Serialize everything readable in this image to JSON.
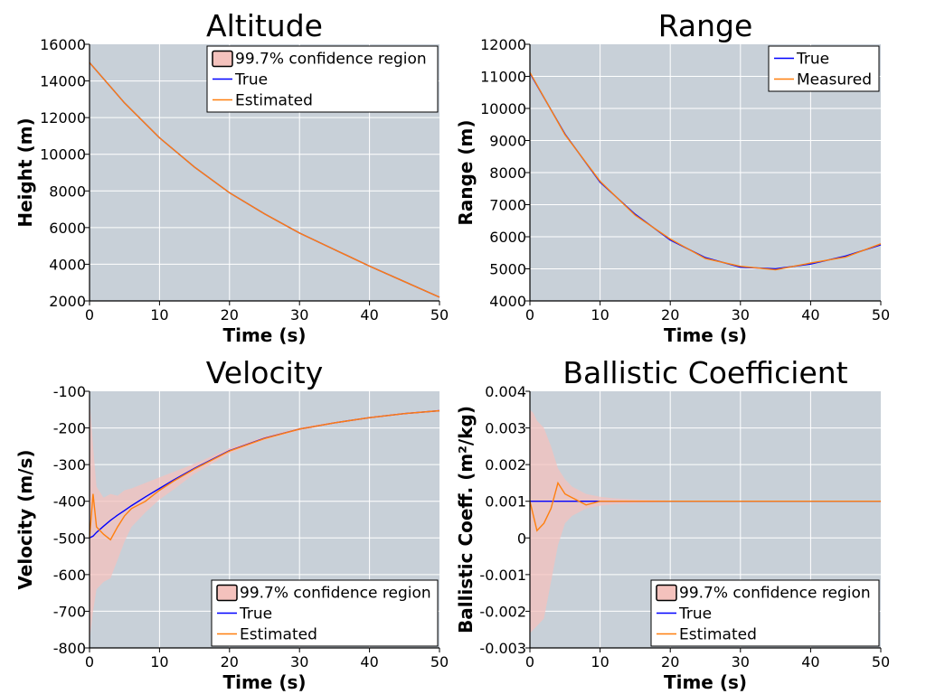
{
  "chart_data": [
    {
      "type": "line",
      "title": "Altitude",
      "xlabel": "Time (s)",
      "ylabel": "Height (m)",
      "xlim": [
        0,
        50
      ],
      "ylim": [
        2000,
        16000
      ],
      "xticks": [
        0,
        10,
        20,
        30,
        40,
        50
      ],
      "yticks": [
        2000,
        4000,
        6000,
        8000,
        10000,
        12000,
        14000,
        16000
      ],
      "xtick_labels": [
        "0",
        "10",
        "20",
        "30",
        "40",
        "50"
      ],
      "ytick_labels": [
        "2000",
        "4000",
        "6000",
        "8000",
        "10000",
        "12000",
        "14000",
        "16000"
      ],
      "grid": true,
      "legend_position": "top-right",
      "x": [
        0,
        5,
        10,
        15,
        20,
        25,
        30,
        35,
        40,
        45,
        50
      ],
      "series": [
        {
          "name": "True",
          "color": "#0000ff",
          "values": [
            15000,
            12800,
            10900,
            9300,
            7900,
            6750,
            5700,
            4800,
            3900,
            3050,
            2200
          ]
        },
        {
          "name": "Estimated",
          "color": "#ff7f0e",
          "values": [
            15000,
            12800,
            10900,
            9300,
            7900,
            6750,
            5700,
            4800,
            3900,
            3050,
            2200
          ]
        }
      ],
      "confidence_band": {
        "name": "99.7% confidence region",
        "color": "#f4c2bd",
        "upper": [
          15050,
          12850,
          10950,
          9350,
          7950,
          6800,
          5750,
          4850,
          3950,
          3100,
          2250
        ],
        "lower": [
          14950,
          12750,
          10850,
          9250,
          7850,
          6700,
          5650,
          4750,
          3850,
          3000,
          2150
        ]
      }
    },
    {
      "type": "line",
      "title": "Range",
      "xlabel": "Time (s)",
      "ylabel": "Range (m)",
      "xlim": [
        0,
        50
      ],
      "ylim": [
        4000,
        12000
      ],
      "xticks": [
        0,
        10,
        20,
        30,
        40,
        50
      ],
      "yticks": [
        4000,
        5000,
        6000,
        7000,
        8000,
        9000,
        10000,
        11000,
        12000
      ],
      "xtick_labels": [
        "0",
        "10",
        "20",
        "30",
        "40",
        "50"
      ],
      "ytick_labels": [
        "4000",
        "5000",
        "6000",
        "7000",
        "8000",
        "9000",
        "10000",
        "11000",
        "12000"
      ],
      "grid": true,
      "legend_position": "top-right",
      "x": [
        0,
        5,
        10,
        15,
        20,
        25,
        30,
        35,
        40,
        45,
        50
      ],
      "series": [
        {
          "name": "True",
          "color": "#0000ff",
          "values": [
            11100,
            9200,
            7700,
            6700,
            5900,
            5350,
            5050,
            5000,
            5150,
            5400,
            5750
          ]
        },
        {
          "name": "Measured",
          "color": "#ff7f0e",
          "values": [
            11120,
            9180,
            7730,
            6670,
            5930,
            5320,
            5080,
            4970,
            5180,
            5370,
            5780
          ]
        }
      ]
    },
    {
      "type": "line",
      "title": "Velocity",
      "xlabel": "Time (s)",
      "ylabel": "Velocity (m/s)",
      "xlim": [
        0,
        50
      ],
      "ylim": [
        -800,
        -100
      ],
      "xticks": [
        0,
        10,
        20,
        30,
        40,
        50
      ],
      "yticks": [
        -800,
        -700,
        -600,
        -500,
        -400,
        -300,
        -200,
        -100
      ],
      "xtick_labels": [
        "0",
        "10",
        "20",
        "30",
        "40",
        "50"
      ],
      "ytick_labels": [
        "-800",
        "-700",
        "-600",
        "-500",
        "-400",
        "-300",
        "-200",
        "-100"
      ],
      "grid": true,
      "legend_position": "bottom-right",
      "x": [
        0,
        0.5,
        1,
        2,
        3,
        4,
        5,
        6,
        8,
        10,
        12,
        15,
        20,
        25,
        30,
        35,
        40,
        45,
        50
      ],
      "series": [
        {
          "name": "True",
          "color": "#0000ff",
          "values": [
            -500,
            -495,
            -485,
            -468,
            -452,
            -438,
            -425,
            -412,
            -388,
            -365,
            -342,
            -310,
            -262,
            -228,
            -203,
            -186,
            -172,
            -161,
            -153
          ]
        },
        {
          "name": "Estimated",
          "color": "#ff7f0e",
          "values": [
            -500,
            -380,
            -470,
            -490,
            -505,
            -470,
            -440,
            -420,
            -400,
            -370,
            -345,
            -312,
            -263,
            -229,
            -203,
            -186,
            -172,
            -161,
            -153
          ]
        }
      ],
      "confidence_band": {
        "name": "99.7% confidence region",
        "color": "#f4c2bd",
        "upper": [
          -120,
          -250,
          -360,
          -390,
          -380,
          -385,
          -370,
          -365,
          -350,
          -335,
          -320,
          -298,
          -255,
          -223,
          -199,
          -183,
          -169,
          -158,
          -150
        ],
        "lower": [
          -780,
          -700,
          -640,
          -620,
          -610,
          -560,
          -510,
          -470,
          -430,
          -395,
          -368,
          -325,
          -270,
          -233,
          -207,
          -189,
          -175,
          -164,
          -156
        ]
      }
    },
    {
      "type": "line",
      "title": "Ballistic Coefficient",
      "xlabel": "Time (s)",
      "ylabel": "Ballistic Coeff. (m²/kg)",
      "xlim": [
        0,
        50
      ],
      "ylim": [
        -0.003,
        0.004
      ],
      "xticks": [
        0,
        10,
        20,
        30,
        40,
        50
      ],
      "yticks": [
        -0.003,
        -0.002,
        -0.001,
        0,
        0.001,
        0.002,
        0.003,
        0.004
      ],
      "xtick_labels": [
        "0",
        "10",
        "20",
        "30",
        "40",
        "50"
      ],
      "ytick_labels": [
        "-0.003",
        "-0.002",
        "-0.001",
        "0",
        "0.001",
        "0.002",
        "0.003",
        "0.004"
      ],
      "grid": true,
      "legend_position": "bottom-right",
      "x": [
        0,
        0.5,
        1,
        2,
        3,
        4,
        5,
        6,
        8,
        10,
        12,
        15,
        20,
        25,
        30,
        35,
        40,
        45,
        50
      ],
      "series": [
        {
          "name": "True",
          "color": "#0000ff",
          "values": [
            0.001,
            0.001,
            0.001,
            0.001,
            0.001,
            0.001,
            0.001,
            0.001,
            0.001,
            0.001,
            0.001,
            0.001,
            0.001,
            0.001,
            0.001,
            0.001,
            0.001,
            0.001,
            0.001
          ]
        },
        {
          "name": "Estimated",
          "color": "#ff7f0e",
          "values": [
            0.001,
            0.0006,
            0.0002,
            0.0004,
            0.0008,
            0.0015,
            0.0012,
            0.0011,
            0.0009,
            0.001,
            0.001,
            0.001,
            0.001,
            0.001,
            0.001,
            0.001,
            0.001,
            0.001,
            0.001
          ]
        }
      ],
      "confidence_band": {
        "name": "99.7% confidence region",
        "color": "#f4c2bd",
        "upper": [
          0.0035,
          0.0034,
          0.0032,
          0.003,
          0.0025,
          0.0019,
          0.0016,
          0.0014,
          0.0012,
          0.00112,
          0.00108,
          0.00105,
          0.00102,
          0.00101,
          0.00101,
          0.00101,
          0.00101,
          0.00101,
          0.00101
        ],
        "lower": [
          -0.0026,
          -0.0025,
          -0.0024,
          -0.0022,
          -0.0012,
          -0.0002,
          0.0004,
          0.0006,
          0.0008,
          0.00088,
          0.00092,
          0.00095,
          0.00098,
          0.00099,
          0.00099,
          0.00099,
          0.00099,
          0.00099,
          0.00099
        ]
      }
    }
  ]
}
